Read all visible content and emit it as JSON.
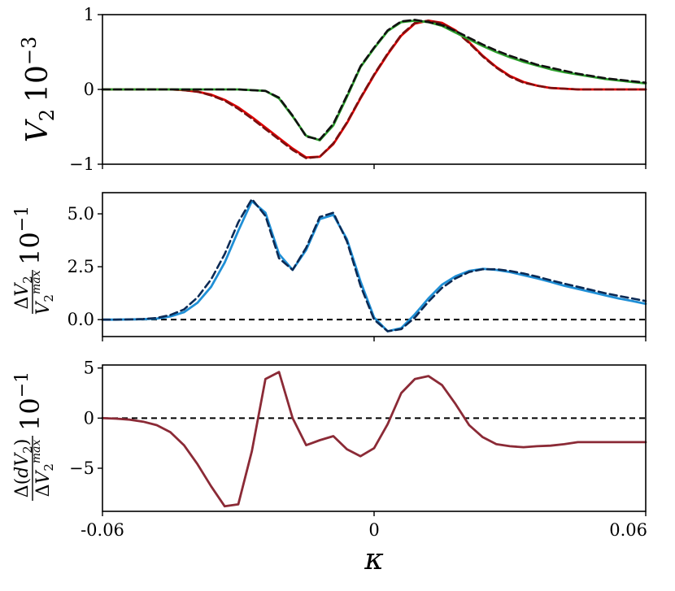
{
  "chart_data": [
    {
      "type": "line",
      "ylabel": "V_2 10^{-3}",
      "ylim": [
        -1.0,
        1.0
      ],
      "xlim": [
        -0.06,
        0.06
      ],
      "y_ticks": [
        {
          "value": 1,
          "label": "1"
        },
        {
          "value": 0,
          "label": "0"
        },
        {
          "value": -1,
          "label": "−1"
        }
      ],
      "series": [
        {
          "color": "#e00000",
          "style": "solid",
          "x": [
            -0.06,
            -0.057,
            -0.054,
            -0.051,
            -0.048,
            -0.045,
            -0.042,
            -0.039,
            -0.036,
            -0.033,
            -0.03,
            -0.027,
            -0.024,
            -0.021,
            -0.018,
            -0.015,
            -0.012,
            -0.009,
            -0.006,
            -0.003,
            0.0,
            0.003,
            0.006,
            0.009,
            0.012,
            0.015,
            0.018,
            0.021,
            0.024,
            0.027,
            0.03,
            0.033,
            0.036,
            0.039,
            0.042,
            0.045,
            0.048,
            0.051,
            0.054,
            0.057,
            0.06
          ],
          "y": [
            0,
            0,
            0,
            0,
            0,
            0,
            -0.01,
            -0.03,
            -0.07,
            -0.14,
            -0.24,
            -0.37,
            -0.51,
            -0.65,
            -0.79,
            -0.91,
            -0.9,
            -0.73,
            -0.45,
            -0.12,
            0.19,
            0.47,
            0.72,
            0.88,
            0.92,
            0.89,
            0.79,
            0.63,
            0.45,
            0.3,
            0.18,
            0.1,
            0.05,
            0.02,
            0.01,
            0,
            0,
            0,
            0,
            0,
            0
          ]
        },
        {
          "color": "#7a1010",
          "style": "dashed",
          "x": [
            -0.06,
            -0.057,
            -0.054,
            -0.051,
            -0.048,
            -0.045,
            -0.042,
            -0.039,
            -0.036,
            -0.033,
            -0.03,
            -0.027,
            -0.024,
            -0.021,
            -0.018,
            -0.015,
            -0.012,
            -0.009,
            -0.006,
            -0.003,
            0.0,
            0.003,
            0.006,
            0.009,
            0.012,
            0.015,
            0.018,
            0.021,
            0.024,
            0.027,
            0.03,
            0.033,
            0.036,
            0.039,
            0.042,
            0.045,
            0.048,
            0.051,
            0.054,
            0.057,
            0.06
          ],
          "y": [
            0,
            0,
            0,
            0,
            0,
            0,
            -0.01,
            -0.03,
            -0.08,
            -0.15,
            -0.26,
            -0.39,
            -0.53,
            -0.67,
            -0.81,
            -0.92,
            -0.9,
            -0.72,
            -0.44,
            -0.11,
            0.2,
            0.48,
            0.73,
            0.89,
            0.92,
            0.88,
            0.78,
            0.62,
            0.44,
            0.29,
            0.17,
            0.09,
            0.05,
            0.02,
            0.01,
            0,
            0,
            0,
            0,
            0,
            0
          ]
        },
        {
          "color": "#2ca02c",
          "style": "solid",
          "x": [
            -0.06,
            -0.057,
            -0.054,
            -0.051,
            -0.048,
            -0.045,
            -0.042,
            -0.039,
            -0.036,
            -0.033,
            -0.03,
            -0.027,
            -0.024,
            -0.021,
            -0.018,
            -0.015,
            -0.012,
            -0.009,
            -0.006,
            -0.003,
            0.0,
            0.003,
            0.006,
            0.009,
            0.012,
            0.015,
            0.018,
            0.021,
            0.024,
            0.027,
            0.03,
            0.033,
            0.036,
            0.039,
            0.042,
            0.045,
            0.048,
            0.051,
            0.054,
            0.057,
            0.06
          ],
          "y": [
            0,
            0,
            0,
            0,
            0,
            0,
            0,
            0,
            0,
            0,
            0,
            -0.01,
            -0.02,
            -0.12,
            -0.36,
            -0.62,
            -0.68,
            -0.48,
            -0.1,
            0.3,
            0.55,
            0.78,
            0.9,
            0.92,
            0.9,
            0.85,
            0.76,
            0.67,
            0.58,
            0.5,
            0.43,
            0.37,
            0.32,
            0.27,
            0.23,
            0.2,
            0.17,
            0.14,
            0.12,
            0.1,
            0.08
          ]
        },
        {
          "color": "#111111",
          "style": "dashed",
          "x": [
            -0.06,
            -0.057,
            -0.054,
            -0.051,
            -0.048,
            -0.045,
            -0.042,
            -0.039,
            -0.036,
            -0.033,
            -0.03,
            -0.027,
            -0.024,
            -0.021,
            -0.018,
            -0.015,
            -0.012,
            -0.009,
            -0.006,
            -0.003,
            0.0,
            0.003,
            0.006,
            0.009,
            0.012,
            0.015,
            0.018,
            0.021,
            0.024,
            0.027,
            0.03,
            0.033,
            0.036,
            0.039,
            0.042,
            0.045,
            0.048,
            0.051,
            0.054,
            0.057,
            0.06
          ],
          "y": [
            0,
            0,
            0,
            0,
            0,
            0,
            0,
            0,
            0,
            0,
            0,
            -0.01,
            -0.02,
            -0.11,
            -0.35,
            -0.63,
            -0.67,
            -0.46,
            -0.08,
            0.31,
            0.56,
            0.79,
            0.91,
            0.93,
            0.9,
            0.86,
            0.78,
            0.69,
            0.6,
            0.52,
            0.45,
            0.39,
            0.33,
            0.29,
            0.25,
            0.21,
            0.18,
            0.15,
            0.13,
            0.11,
            0.09
          ]
        }
      ]
    },
    {
      "type": "line",
      "ylabel": "ΔV_2 / V_2^{max} 10^{-1}",
      "ylim": [
        -0.8,
        6.0
      ],
      "xlim": [
        -0.06,
        0.06
      ],
      "y_ticks": [
        {
          "value": 5.0,
          "label": "5.0"
        },
        {
          "value": 2.5,
          "label": "2.5"
        },
        {
          "value": 0.0,
          "label": "0.0"
        }
      ],
      "reference_line": 0,
      "series": [
        {
          "color": "#1f8fd6",
          "style": "solid",
          "x": [
            -0.06,
            -0.057,
            -0.054,
            -0.051,
            -0.048,
            -0.045,
            -0.042,
            -0.039,
            -0.036,
            -0.033,
            -0.03,
            -0.027,
            -0.024,
            -0.021,
            -0.018,
            -0.015,
            -0.012,
            -0.009,
            -0.006,
            -0.003,
            0.0,
            0.003,
            0.006,
            0.009,
            0.012,
            0.015,
            0.018,
            0.021,
            0.024,
            0.027,
            0.03,
            0.033,
            0.036,
            0.039,
            0.042,
            0.045,
            0.048,
            0.051,
            0.054,
            0.057,
            0.06
          ],
          "y": [
            0,
            0,
            0.01,
            0.02,
            0.05,
            0.15,
            0.35,
            0.8,
            1.55,
            2.7,
            4.2,
            5.6,
            5.05,
            3.1,
            2.35,
            3.3,
            4.75,
            4.95,
            3.8,
            1.8,
            0.1,
            -0.55,
            -0.4,
            0.25,
            1.0,
            1.65,
            2.05,
            2.3,
            2.4,
            2.35,
            2.25,
            2.1,
            1.95,
            1.78,
            1.6,
            1.45,
            1.3,
            1.15,
            1.0,
            0.88,
            0.75
          ]
        },
        {
          "color": "#0b2a55",
          "style": "dashed",
          "x": [
            -0.06,
            -0.057,
            -0.054,
            -0.051,
            -0.048,
            -0.045,
            -0.042,
            -0.039,
            -0.036,
            -0.033,
            -0.03,
            -0.027,
            -0.024,
            -0.021,
            -0.018,
            -0.015,
            -0.012,
            -0.009,
            -0.006,
            -0.003,
            0.0,
            0.003,
            0.006,
            0.009,
            0.012,
            0.015,
            0.018,
            0.021,
            0.024,
            0.027,
            0.03,
            0.033,
            0.036,
            0.039,
            0.042,
            0.045,
            0.048,
            0.051,
            0.054,
            0.057,
            0.06
          ],
          "y": [
            0,
            0,
            0.01,
            0.03,
            0.08,
            0.22,
            0.48,
            1.05,
            1.9,
            3.1,
            4.6,
            5.7,
            4.9,
            2.9,
            2.35,
            3.4,
            4.85,
            5.05,
            3.7,
            1.6,
            0.0,
            -0.55,
            -0.45,
            0.1,
            0.85,
            1.5,
            1.95,
            2.25,
            2.38,
            2.38,
            2.3,
            2.18,
            2.03,
            1.86,
            1.7,
            1.55,
            1.4,
            1.25,
            1.12,
            1.0,
            0.88
          ]
        }
      ]
    },
    {
      "type": "line",
      "ylabel": "Δ(dV_2) / ΔV_2^{max} 10^{-1}",
      "xlabel": "κ",
      "ylim": [
        -9.3,
        5.3
      ],
      "xlim": [
        -0.06,
        0.06
      ],
      "x_ticks": [
        {
          "value": -0.06,
          "label": "-0.06"
        },
        {
          "value": 0,
          "label": "0"
        },
        {
          "value": 0.06,
          "label": "0.06"
        }
      ],
      "y_ticks": [
        {
          "value": 5,
          "label": "5"
        },
        {
          "value": 0,
          "label": "0"
        },
        {
          "value": -5,
          "label": "−5"
        }
      ],
      "reference_line": 0,
      "series": [
        {
          "color": "#8b2a36",
          "style": "solid",
          "x": [
            -0.06,
            -0.057,
            -0.054,
            -0.051,
            -0.048,
            -0.045,
            -0.042,
            -0.039,
            -0.036,
            -0.033,
            -0.03,
            -0.027,
            -0.024,
            -0.021,
            -0.018,
            -0.015,
            -0.012,
            -0.009,
            -0.006,
            -0.003,
            0.0,
            0.003,
            0.006,
            0.009,
            0.012,
            0.015,
            0.018,
            0.021,
            0.024,
            0.027,
            0.03,
            0.033,
            0.036,
            0.039,
            0.042,
            0.045,
            0.048,
            0.051,
            0.054,
            0.057,
            0.06
          ],
          "y": [
            0,
            -0.05,
            -0.15,
            -0.35,
            -0.7,
            -1.4,
            -2.7,
            -4.6,
            -6.8,
            -8.8,
            -8.6,
            -3.3,
            3.9,
            4.6,
            0.0,
            -2.7,
            -2.2,
            -1.8,
            -3.1,
            -3.8,
            -3.0,
            -0.6,
            2.5,
            3.9,
            4.2,
            3.3,
            1.4,
            -0.7,
            -1.9,
            -2.6,
            -2.8,
            -2.9,
            -2.8,
            -2.75,
            -2.6,
            -2.4,
            -2.4,
            -2.4,
            -2.4,
            -2.4,
            -2.4
          ]
        }
      ]
    }
  ]
}
